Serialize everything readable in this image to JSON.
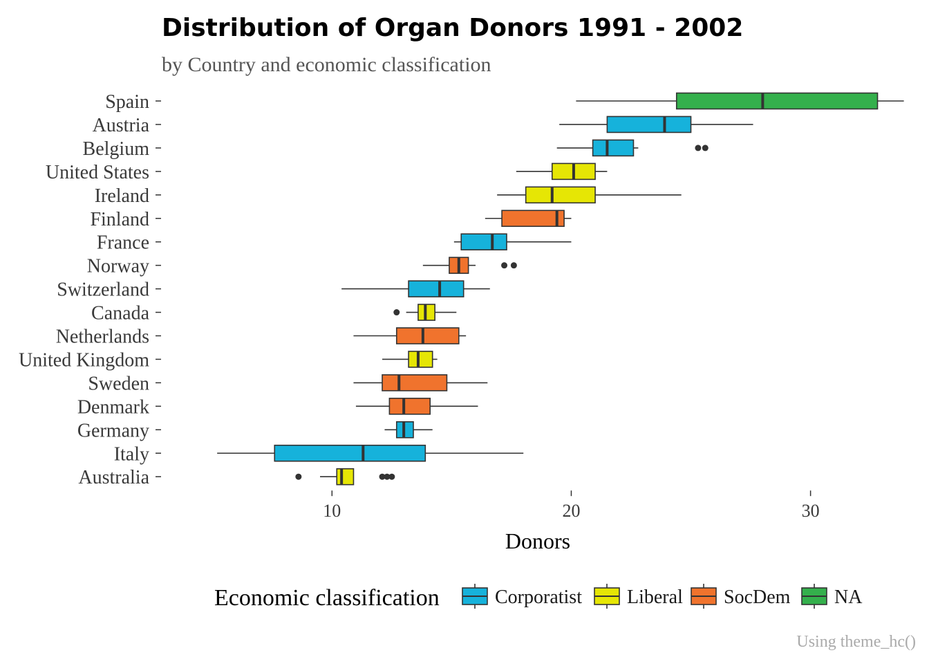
{
  "chart_data": {
    "type": "boxplot",
    "title": "Distribution of Organ Donors 1991 - 2002",
    "subtitle": "by Country and economic classification",
    "xlabel": "Donors",
    "ylabel": "",
    "xlim": [
      3.0,
      34.2
    ],
    "x_ticks": [
      10,
      20,
      30
    ],
    "grid": false,
    "legend": {
      "title": "Economic classification",
      "position": "bottom",
      "entries": [
        {
          "name": "Corporatist",
          "color": "#16B2DB"
        },
        {
          "name": "Liberal",
          "color": "#E6E605"
        },
        {
          "name": "SocDem",
          "color": "#F0732D"
        },
        {
          "name": "NA",
          "color": "#34B04C"
        }
      ]
    },
    "caption": "Using theme_hc()",
    "countries": [
      {
        "name": "Spain",
        "group": "NA",
        "whisker_low": 20.2,
        "q1": 24.4,
        "median": 28.0,
        "q3": 32.8,
        "whisker_high": 33.9,
        "outliers": []
      },
      {
        "name": "Austria",
        "group": "Corporatist",
        "whisker_low": 19.5,
        "q1": 21.5,
        "median": 23.9,
        "q3": 25.0,
        "whisker_high": 27.6,
        "outliers": []
      },
      {
        "name": "Belgium",
        "group": "Corporatist",
        "whisker_low": 19.4,
        "q1": 20.9,
        "median": 21.5,
        "q3": 22.6,
        "whisker_high": 22.8,
        "outliers": [
          25.3,
          25.6
        ]
      },
      {
        "name": "United States",
        "group": "Liberal",
        "whisker_low": 17.7,
        "q1": 19.2,
        "median": 20.1,
        "q3": 21.0,
        "whisker_high": 21.5,
        "outliers": []
      },
      {
        "name": "Ireland",
        "group": "Liberal",
        "whisker_low": 16.9,
        "q1": 18.1,
        "median": 19.2,
        "q3": 21.0,
        "whisker_high": 24.6,
        "outliers": []
      },
      {
        "name": "Finland",
        "group": "SocDem",
        "whisker_low": 16.4,
        "q1": 17.1,
        "median": 19.4,
        "q3": 19.7,
        "whisker_high": 20.0,
        "outliers": []
      },
      {
        "name": "France",
        "group": "Corporatist",
        "whisker_low": 15.1,
        "q1": 15.4,
        "median": 16.7,
        "q3": 17.3,
        "whisker_high": 20.0,
        "outliers": []
      },
      {
        "name": "Norway",
        "group": "SocDem",
        "whisker_low": 13.8,
        "q1": 14.9,
        "median": 15.3,
        "q3": 15.7,
        "whisker_high": 16.0,
        "outliers": [
          17.2,
          17.6
        ]
      },
      {
        "name": "Switzerland",
        "group": "Corporatist",
        "whisker_low": 10.4,
        "q1": 13.2,
        "median": 14.5,
        "q3": 15.5,
        "whisker_high": 16.6,
        "outliers": []
      },
      {
        "name": "Canada",
        "group": "Liberal",
        "whisker_low": 13.1,
        "q1": 13.6,
        "median": 13.9,
        "q3": 14.3,
        "whisker_high": 15.2,
        "outliers": [
          12.7
        ]
      },
      {
        "name": "Netherlands",
        "group": "SocDem",
        "whisker_low": 10.9,
        "q1": 12.7,
        "median": 13.8,
        "q3": 15.3,
        "whisker_high": 15.6,
        "outliers": []
      },
      {
        "name": "United Kingdom",
        "group": "Liberal",
        "whisker_low": 12.1,
        "q1": 13.2,
        "median": 13.6,
        "q3": 14.2,
        "whisker_high": 14.4,
        "outliers": []
      },
      {
        "name": "Sweden",
        "group": "SocDem",
        "whisker_low": 10.9,
        "q1": 12.1,
        "median": 12.8,
        "q3": 14.8,
        "whisker_high": 16.5,
        "outliers": []
      },
      {
        "name": "Denmark",
        "group": "SocDem",
        "whisker_low": 11.0,
        "q1": 12.4,
        "median": 13.0,
        "q3": 14.1,
        "whisker_high": 16.1,
        "outliers": []
      },
      {
        "name": "Germany",
        "group": "Corporatist",
        "whisker_low": 12.2,
        "q1": 12.7,
        "median": 13.0,
        "q3": 13.4,
        "whisker_high": 14.2,
        "outliers": []
      },
      {
        "name": "Italy",
        "group": "Corporatist",
        "whisker_low": 5.2,
        "q1": 7.6,
        "median": 11.3,
        "q3": 13.9,
        "whisker_high": 18.0,
        "outliers": []
      },
      {
        "name": "Australia",
        "group": "Liberal",
        "whisker_low": 9.5,
        "q1": 10.2,
        "median": 10.4,
        "q3": 10.9,
        "whisker_high": 10.9,
        "outliers": [
          8.6,
          12.1,
          12.3,
          12.5
        ]
      }
    ]
  }
}
